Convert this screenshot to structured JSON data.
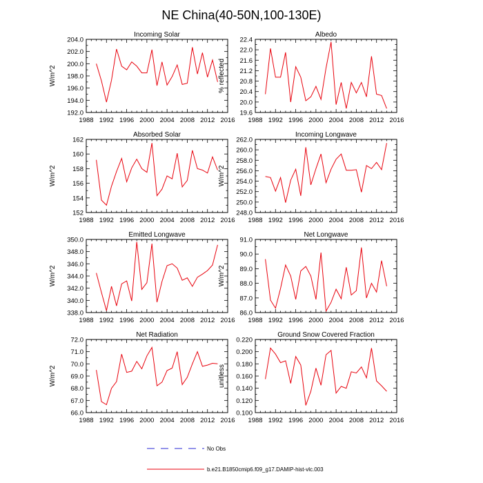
{
  "figure_title": "NE China(40-50N,100-130E)",
  "legend": {
    "obs_label": "No Obs",
    "obs_color": "#2a2ad6",
    "model_label": "b.e21.B1850cmip6.f09_g17.DAMIP-hist-vlc.003",
    "model_color": "#e8000b"
  },
  "chart_data": [
    {
      "type": "line",
      "title": "Incoming Solar",
      "xlabel": "",
      "ylabel": "W/m^2",
      "xlim": [
        1988,
        2016
      ],
      "xticks": [
        "1988",
        "1992",
        "1996",
        "2000",
        "2004",
        "2008",
        "2012",
        "2016"
      ],
      "ylim": [
        192,
        204
      ],
      "yticks": [
        "192.0",
        "194.0",
        "196.0",
        "198.0",
        "200.0",
        "202.0",
        "204.0"
      ],
      "series": [
        {
          "name": "b.e21.B1850cmip6.f09_g17.DAMIP-hist-vlc.003",
          "x": [
            1990,
            1991,
            1992,
            1993,
            1994,
            1995,
            1996,
            1997,
            1998,
            1999,
            2000,
            2001,
            2002,
            2003,
            2004,
            2005,
            2006,
            2007,
            2008,
            2009,
            2010,
            2011,
            2012,
            2013,
            2014
          ],
          "values": [
            200.0,
            197.2,
            193.7,
            197.3,
            202.4,
            199.6,
            199.0,
            200.3,
            199.6,
            198.5,
            198.5,
            202.3,
            196.4,
            200.3,
            196.5,
            197.9,
            199.8,
            196.6,
            196.8,
            202.7,
            198.3,
            201.8,
            197.8,
            200.6,
            197.0
          ]
        }
      ]
    },
    {
      "type": "line",
      "title": "Albedo",
      "xlabel": "",
      "ylabel": "% reflected",
      "xlim": [
        1988,
        2016
      ],
      "xticks": [
        "1988",
        "1992",
        "1996",
        "2000",
        "2004",
        "2008",
        "2012",
        "2016"
      ],
      "ylim": [
        19.6,
        22.4
      ],
      "yticks": [
        "19.6",
        "20.0",
        "20.4",
        "20.8",
        "21.2",
        "21.6",
        "22.0",
        "22.4"
      ],
      "series": [
        {
          "name": "b.e21.B1850cmip6.f09_g17.DAMIP-hist-vlc.003",
          "x": [
            1990,
            1991,
            1992,
            1993,
            1994,
            1995,
            1996,
            1997,
            1998,
            1999,
            2000,
            2001,
            2002,
            2003,
            2004,
            2005,
            2006,
            2007,
            2008,
            2009,
            2010,
            2011,
            2012,
            2013,
            2014
          ],
          "values": [
            20.3,
            22.05,
            20.95,
            20.95,
            21.9,
            20.0,
            21.35,
            20.95,
            20.05,
            20.2,
            20.6,
            20.1,
            21.3,
            22.3,
            19.9,
            20.75,
            19.75,
            20.75,
            20.35,
            20.75,
            20.2,
            21.75,
            20.3,
            20.25,
            19.75
          ]
        }
      ]
    },
    {
      "type": "line",
      "title": "Absorbed Solar",
      "xlabel": "",
      "ylabel": "W/m^2",
      "xlim": [
        1988,
        2016
      ],
      "xticks": [
        "1988",
        "1992",
        "1996",
        "2000",
        "2004",
        "2008",
        "2012",
        "2016"
      ],
      "ylim": [
        152,
        162
      ],
      "yticks": [
        "152",
        "154",
        "156",
        "158",
        "160",
        "162"
      ],
      "series": [
        {
          "name": "b.e21.B1850cmip6.f09_g17.DAMIP-hist-vlc.003",
          "x": [
            1990,
            1991,
            1992,
            1993,
            1994,
            1995,
            1996,
            1997,
            1998,
            1999,
            2000,
            2001,
            2002,
            2003,
            2004,
            2005,
            2006,
            2007,
            2008,
            2009,
            2010,
            2011,
            2012,
            2013,
            2014
          ],
          "values": [
            159.2,
            153.7,
            153.0,
            155.6,
            157.6,
            159.4,
            156.2,
            158.1,
            159.3,
            158.0,
            157.5,
            161.5,
            154.3,
            155.2,
            157.0,
            156.6,
            160.1,
            155.5,
            156.4,
            160.5,
            158.0,
            157.8,
            157.4,
            159.6,
            157.8
          ]
        }
      ]
    },
    {
      "type": "line",
      "title": "Incoming Longwave",
      "xlabel": "",
      "ylabel": "W/m^2",
      "xlim": [
        1988,
        2016
      ],
      "xticks": [
        "1988",
        "1992",
        "1996",
        "2000",
        "2004",
        "2008",
        "2012",
        "2016"
      ],
      "ylim": [
        248,
        262
      ],
      "yticks": [
        "248.0",
        "250.0",
        "252.0",
        "254.0",
        "256.0",
        "258.0",
        "260.0",
        "262.0"
      ],
      "series": [
        {
          "name": "b.e21.B1850cmip6.f09_g17.DAMIP-hist-vlc.003",
          "x": [
            1990,
            1991,
            1992,
            1993,
            1994,
            1995,
            1996,
            1997,
            1998,
            1999,
            2000,
            2001,
            2002,
            2003,
            2004,
            2005,
            2006,
            2007,
            2008,
            2009,
            2010,
            2011,
            2012,
            2013,
            2014
          ],
          "values": [
            254.9,
            254.7,
            252.1,
            254.7,
            249.9,
            254.2,
            256.3,
            251.2,
            260.5,
            253.3,
            256.4,
            259.2,
            253.7,
            256.3,
            258.2,
            259.2,
            256.1,
            256.1,
            256.2,
            251.9,
            257.0,
            256.4,
            257.6,
            256.2,
            261.3
          ]
        }
      ]
    },
    {
      "type": "line",
      "title": "Emitted Longwave",
      "xlabel": "",
      "ylabel": "W/m^2",
      "xlim": [
        1988,
        2016
      ],
      "xticks": [
        "1988",
        "1992",
        "1996",
        "2000",
        "2004",
        "2008",
        "2012",
        "2016"
      ],
      "ylim": [
        338,
        350
      ],
      "yticks": [
        "338.0",
        "340.0",
        "342.0",
        "344.0",
        "346.0",
        "348.0",
        "350.0"
      ],
      "series": [
        {
          "name": "b.e21.B1850cmip6.f09_g17.DAMIP-hist-vlc.003",
          "x": [
            1990,
            1991,
            1992,
            1993,
            1994,
            1995,
            1996,
            1997,
            1998,
            1999,
            2000,
            2001,
            2002,
            2003,
            2004,
            2005,
            2006,
            2007,
            2008,
            2009,
            2010,
            2011,
            2012,
            2013,
            2014
          ],
          "values": [
            344.5,
            341.3,
            338.3,
            342.3,
            339.1,
            342.7,
            343.2,
            339.9,
            349.6,
            341.8,
            342.9,
            349.3,
            339.7,
            343.1,
            345.7,
            346.0,
            345.3,
            343.3,
            343.7,
            342.3,
            343.8,
            344.3,
            344.9,
            345.8,
            349.1
          ]
        }
      ]
    },
    {
      "type": "line",
      "title": "Net Longwave",
      "xlabel": "",
      "ylabel": "W/m^2",
      "xlim": [
        1988,
        2016
      ],
      "xticks": [
        "1988",
        "1992",
        "1996",
        "2000",
        "2004",
        "2008",
        "2012",
        "2016"
      ],
      "ylim": [
        86,
        91
      ],
      "yticks": [
        "86.0",
        "87.0",
        "88.0",
        "89.0",
        "90.0",
        "91.0"
      ],
      "series": [
        {
          "name": "b.e21.B1850cmip6.f09_g17.DAMIP-hist-vlc.003",
          "x": [
            1990,
            1991,
            1992,
            1993,
            1994,
            1995,
            1996,
            1997,
            1998,
            1999,
            2000,
            2001,
            2002,
            2003,
            2004,
            2005,
            2006,
            2007,
            2008,
            2009,
            2010,
            2011,
            2012,
            2013,
            2014
          ],
          "values": [
            89.65,
            86.85,
            86.3,
            87.65,
            89.25,
            88.5,
            86.9,
            88.85,
            89.15,
            88.5,
            86.9,
            90.1,
            86.1,
            86.7,
            87.6,
            86.95,
            89.1,
            87.2,
            87.5,
            90.45,
            87.0,
            88.0,
            87.4,
            89.55,
            87.8
          ]
        }
      ]
    },
    {
      "type": "line",
      "title": "Net Radiation",
      "xlabel": "",
      "ylabel": "W/m^2",
      "xlim": [
        1988,
        2016
      ],
      "xticks": [
        "1988",
        "1992",
        "1996",
        "2000",
        "2004",
        "2008",
        "2012",
        "2016"
      ],
      "ylim": [
        66,
        72
      ],
      "yticks": [
        "66.0",
        "67.0",
        "68.0",
        "69.0",
        "70.0",
        "71.0",
        "72.0"
      ],
      "series": [
        {
          "name": "b.e21.B1850cmip6.f09_g17.DAMIP-hist-vlc.003",
          "x": [
            1990,
            1991,
            1992,
            1993,
            1994,
            1995,
            1996,
            1997,
            1998,
            1999,
            2000,
            2001,
            2002,
            2003,
            2004,
            2005,
            2006,
            2007,
            2008,
            2009,
            2010,
            2011,
            2012,
            2013,
            2014
          ],
          "values": [
            69.5,
            66.9,
            66.65,
            68.0,
            68.55,
            70.8,
            69.3,
            69.4,
            70.2,
            69.6,
            70.65,
            71.35,
            68.2,
            68.5,
            69.45,
            69.65,
            71.0,
            68.3,
            68.9,
            70.0,
            71.0,
            69.8,
            69.9,
            70.05,
            70.0
          ]
        }
      ]
    },
    {
      "type": "line",
      "title": "Ground Snow Covered Fraction",
      "xlabel": "",
      "ylabel": "unitless",
      "xlim": [
        1988,
        2016
      ],
      "xticks": [
        "1988",
        "1992",
        "1996",
        "2000",
        "2004",
        "2008",
        "2012",
        "2016"
      ],
      "ylim": [
        0.1,
        0.22
      ],
      "yticks": [
        "0.100",
        "0.120",
        "0.140",
        "0.160",
        "0.180",
        "0.200",
        "0.220"
      ],
      "series": [
        {
          "name": "b.e21.B1850cmip6.f09_g17.DAMIP-hist-vlc.003",
          "x": [
            1990,
            1991,
            1992,
            1993,
            1994,
            1995,
            1996,
            1997,
            1998,
            1999,
            2000,
            2001,
            2002,
            2003,
            2004,
            2005,
            2006,
            2007,
            2008,
            2009,
            2010,
            2011,
            2012,
            2013,
            2014
          ],
          "values": [
            0.155,
            0.206,
            0.196,
            0.182,
            0.185,
            0.148,
            0.192,
            0.178,
            0.112,
            0.135,
            0.173,
            0.145,
            0.195,
            0.202,
            0.132,
            0.143,
            0.14,
            0.167,
            0.165,
            0.175,
            0.157,
            0.206,
            0.152,
            0.144,
            0.135
          ]
        }
      ]
    }
  ]
}
